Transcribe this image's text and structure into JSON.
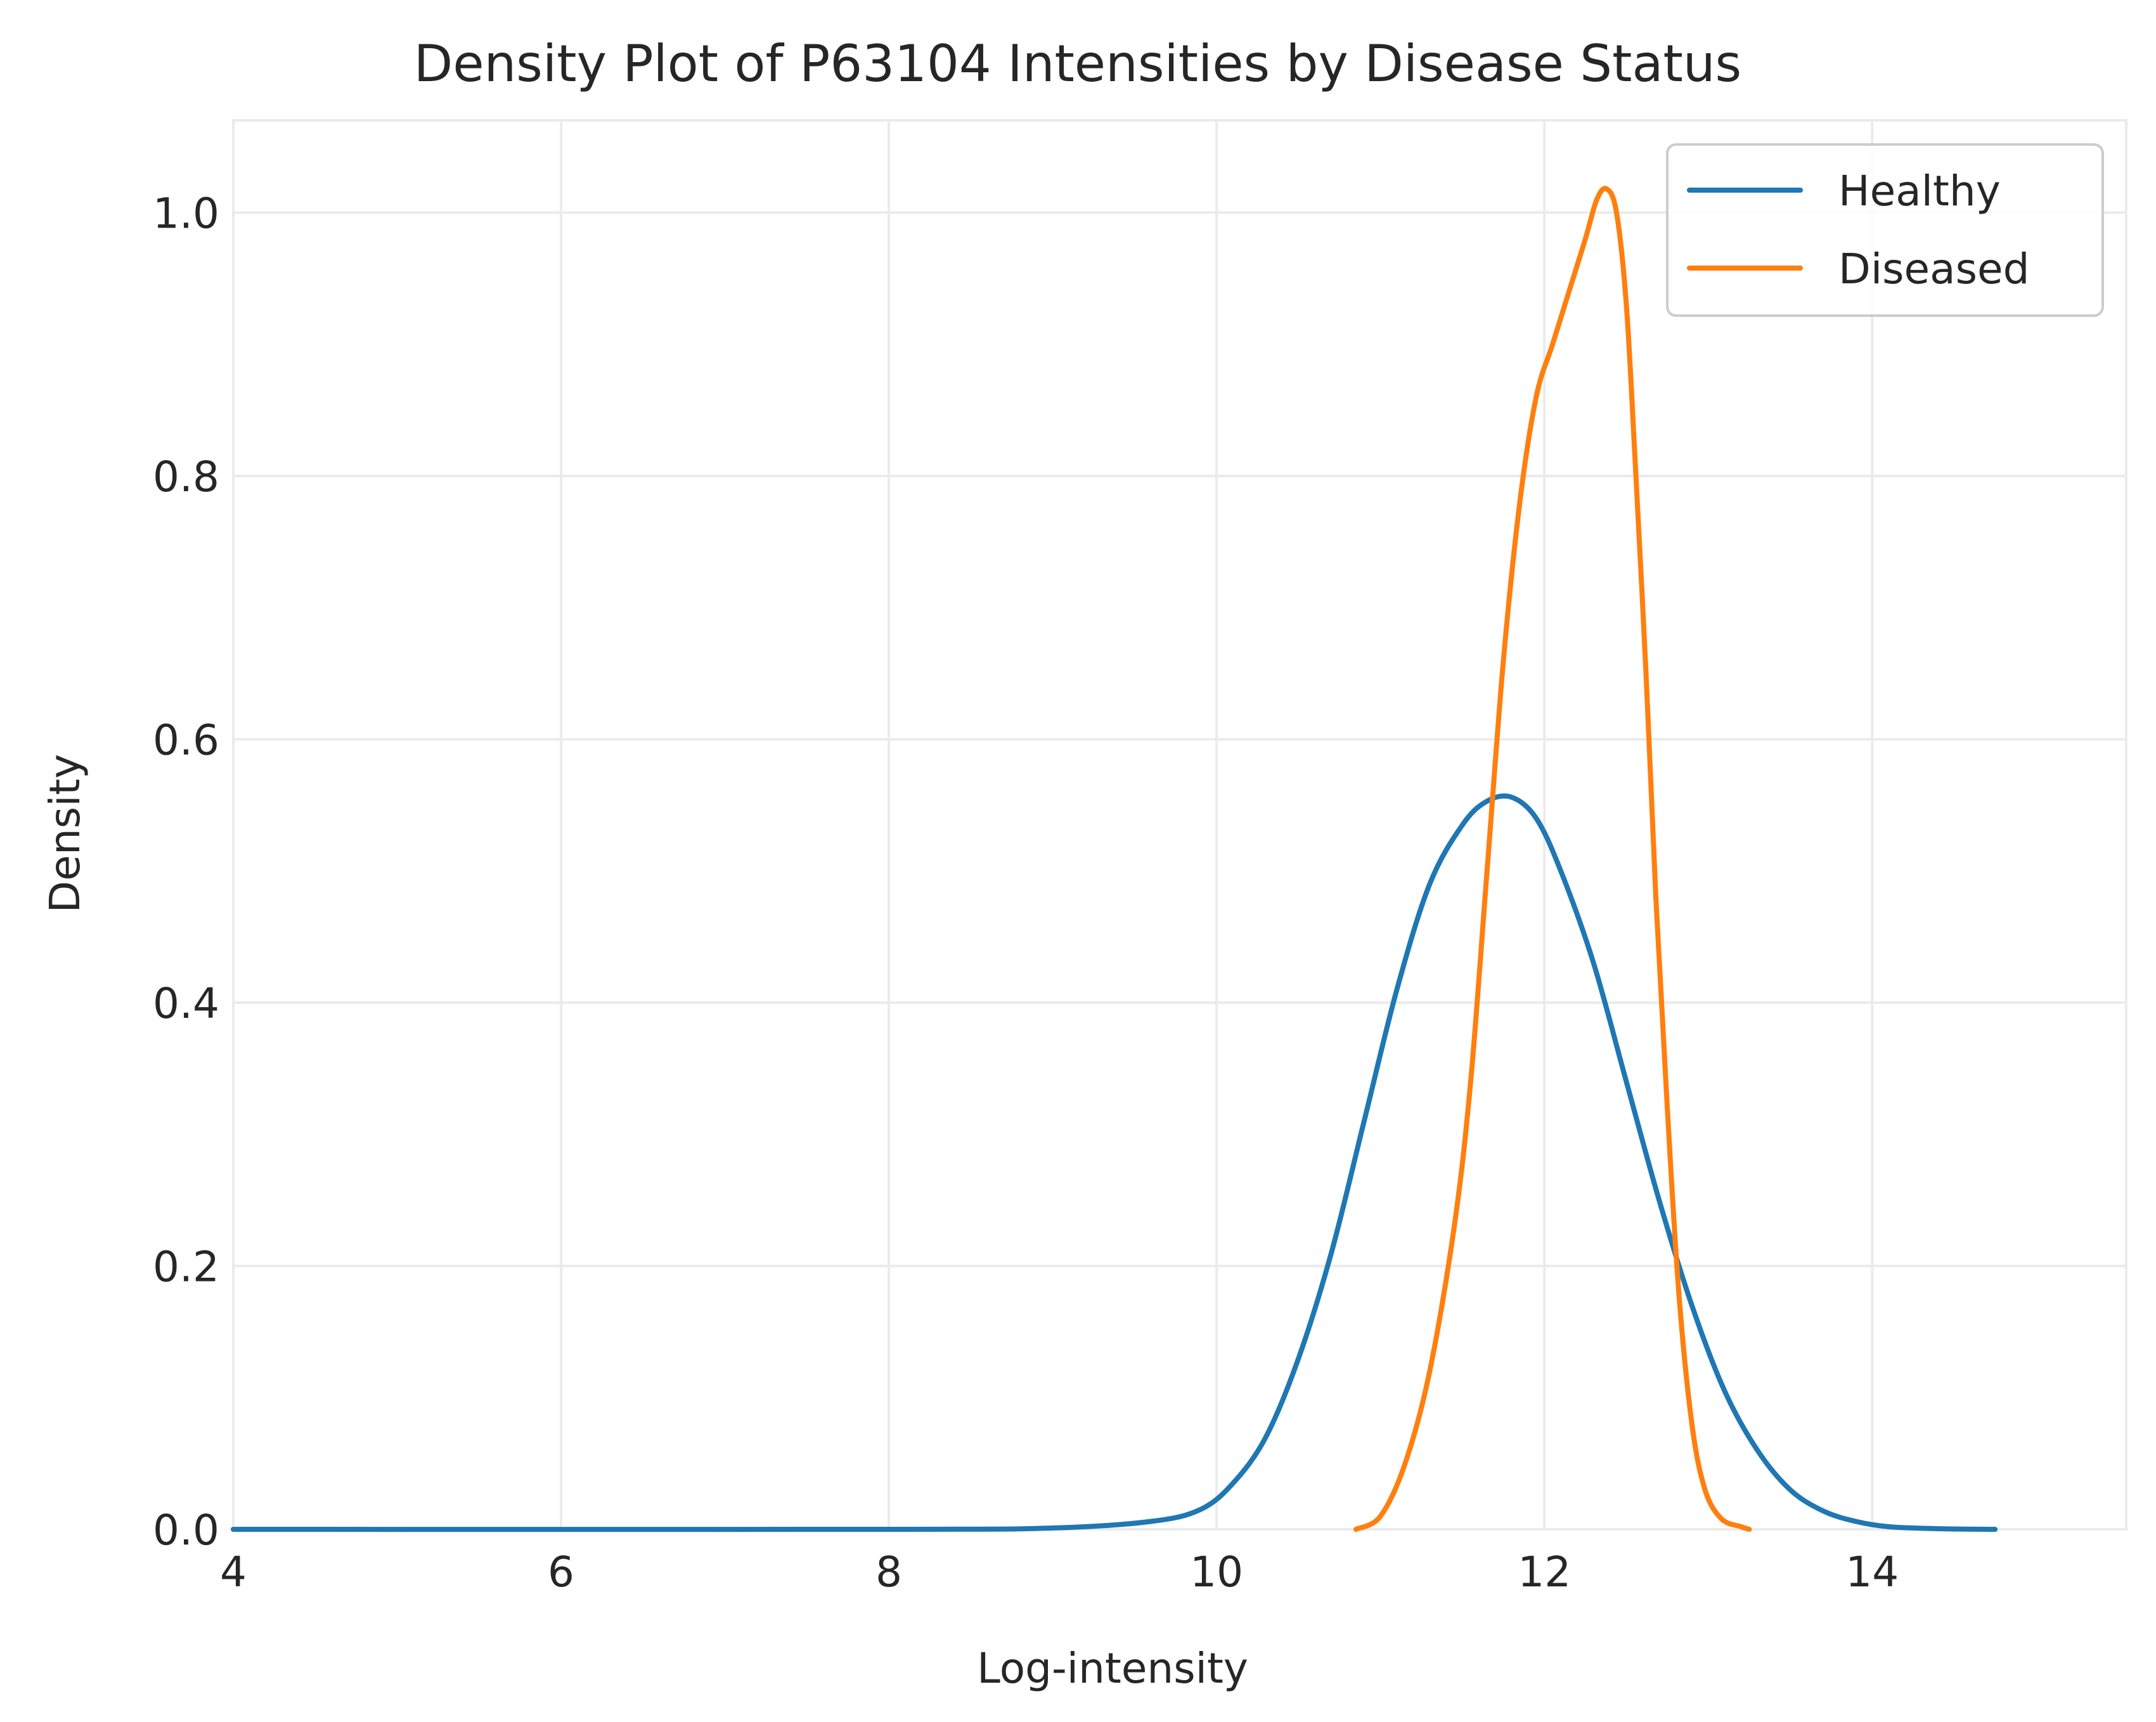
{
  "chart_data": {
    "type": "line",
    "title": "Density Plot of P63104 Intensities by Disease Status",
    "xlabel": "Log-intensity",
    "ylabel": "Density",
    "xlim": [
      4,
      15.55
    ],
    "ylim": [
      0,
      1.07
    ],
    "x_ticks": [
      "4",
      "6",
      "8",
      "10",
      "12",
      "14"
    ],
    "x_tick_values": [
      4,
      6,
      8,
      10,
      12,
      14
    ],
    "y_ticks": [
      "0.0",
      "0.2",
      "0.4",
      "0.6",
      "0.8",
      "1.0"
    ],
    "y_tick_values": [
      0,
      0.2,
      0.4,
      0.6,
      0.8,
      1.0
    ],
    "grid": true,
    "legend_position": "top-right",
    "series": [
      {
        "name": "Healthy",
        "color": "#1f77b4",
        "points": [
          [
            4.0,
            0.0
          ],
          [
            8.0,
            0.0
          ],
          [
            9.0,
            0.001
          ],
          [
            9.6,
            0.006
          ],
          [
            9.9,
            0.015
          ],
          [
            10.1,
            0.035
          ],
          [
            10.3,
            0.07
          ],
          [
            10.5,
            0.13
          ],
          [
            10.7,
            0.21
          ],
          [
            10.9,
            0.31
          ],
          [
            11.1,
            0.41
          ],
          [
            11.3,
            0.49
          ],
          [
            11.5,
            0.535
          ],
          [
            11.65,
            0.553
          ],
          [
            11.8,
            0.556
          ],
          [
            11.95,
            0.54
          ],
          [
            12.1,
            0.5
          ],
          [
            12.3,
            0.43
          ],
          [
            12.5,
            0.34
          ],
          [
            12.7,
            0.25
          ],
          [
            12.9,
            0.17
          ],
          [
            13.1,
            0.105
          ],
          [
            13.3,
            0.06
          ],
          [
            13.5,
            0.03
          ],
          [
            13.7,
            0.014
          ],
          [
            13.9,
            0.006
          ],
          [
            14.1,
            0.002
          ],
          [
            14.4,
            0.0005
          ],
          [
            14.75,
            0.0
          ]
        ]
      },
      {
        "name": "Diseased",
        "color": "#ff7f0e",
        "points": [
          [
            10.85,
            0.0
          ],
          [
            11.0,
            0.01
          ],
          [
            11.15,
            0.05
          ],
          [
            11.3,
            0.12
          ],
          [
            11.45,
            0.23
          ],
          [
            11.55,
            0.34
          ],
          [
            11.65,
            0.5
          ],
          [
            11.75,
            0.66
          ],
          [
            11.85,
            0.78
          ],
          [
            11.95,
            0.86
          ],
          [
            12.05,
            0.9
          ],
          [
            12.15,
            0.94
          ],
          [
            12.25,
            0.98
          ],
          [
            12.32,
            1.01
          ],
          [
            12.38,
            1.018
          ],
          [
            12.44,
            1.0
          ],
          [
            12.5,
            0.93
          ],
          [
            12.55,
            0.82
          ],
          [
            12.62,
            0.65
          ],
          [
            12.68,
            0.48
          ],
          [
            12.75,
            0.32
          ],
          [
            12.82,
            0.18
          ],
          [
            12.9,
            0.08
          ],
          [
            12.98,
            0.03
          ],
          [
            13.08,
            0.008
          ],
          [
            13.2,
            0.002
          ],
          [
            13.25,
            0.0
          ]
        ]
      }
    ]
  }
}
